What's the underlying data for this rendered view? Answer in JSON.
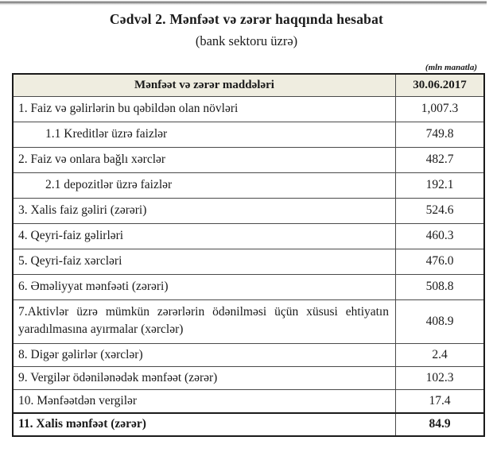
{
  "page": {
    "title": "Cədvəl 2. Mənfəət və zərər haqqında hesabat",
    "subtitle": "(bank sektoru üzrə)",
    "unit_note": "(mln manatla)"
  },
  "table": {
    "headers": [
      "Mənfəət və zərər maddələri",
      "30.06.2017"
    ],
    "rows": [
      {
        "label": "1. Faiz və gəlirlərin bu qəbildən olan növləri",
        "value": "1,007.3",
        "indent": false,
        "bold": false,
        "justify": false
      },
      {
        "label": "1.1 Kreditlər üzrə faizlər",
        "value": "749.8",
        "indent": true,
        "bold": false,
        "justify": false
      },
      {
        "label": "2. Faiz və onlara bağlı xərclər",
        "value": "482.7",
        "indent": false,
        "bold": false,
        "justify": false
      },
      {
        "label": "2.1 depozitlər üzrə faizlər",
        "value": "192.1",
        "indent": true,
        "bold": false,
        "justify": false
      },
      {
        "label": "3. Xalis faiz gəliri (zərəri)",
        "value": "524.6",
        "indent": false,
        "bold": false,
        "justify": false
      },
      {
        "label": "4. Qeyri-faiz gəlirləri",
        "value": "460.3",
        "indent": false,
        "bold": false,
        "justify": false
      },
      {
        "label": "5. Qeyri-faiz xərcləri",
        "value": "476.0",
        "indent": false,
        "bold": false,
        "justify": false
      },
      {
        "label": "6. Əməliyyat mənfəəti (zərəri)",
        "value": "508.8",
        "indent": false,
        "bold": false,
        "justify": false
      },
      {
        "label": "7.Aktivlər üzrə mümkün zərərlərin ödənilməsi üçün xüsusi ehtiyatın yaradılmasına ayırmalar (xərclər)",
        "value": "408.9",
        "indent": false,
        "bold": false,
        "justify": true
      },
      {
        "label": "8. Digər gəlirlər (xərclər)",
        "value": "2.4",
        "indent": false,
        "bold": false,
        "justify": false
      },
      {
        "label": "9. Vergilər ödənilənədək mənfəət (zərər)",
        "value": "102.3",
        "indent": false,
        "bold": false,
        "justify": false
      },
      {
        "label": "10. Mənfəətdən vergilər",
        "value": "17.4",
        "indent": false,
        "bold": false,
        "justify": false
      },
      {
        "label": "11. Xalis mənfəət (zərər)",
        "value": "84.9",
        "indent": false,
        "bold": true,
        "justify": false
      }
    ]
  },
  "colors": {
    "header_bg": "#efede0",
    "outer_border": "#1a1a1a",
    "inner_border": "#4a4a4a",
    "text": "#1a1a1a"
  }
}
